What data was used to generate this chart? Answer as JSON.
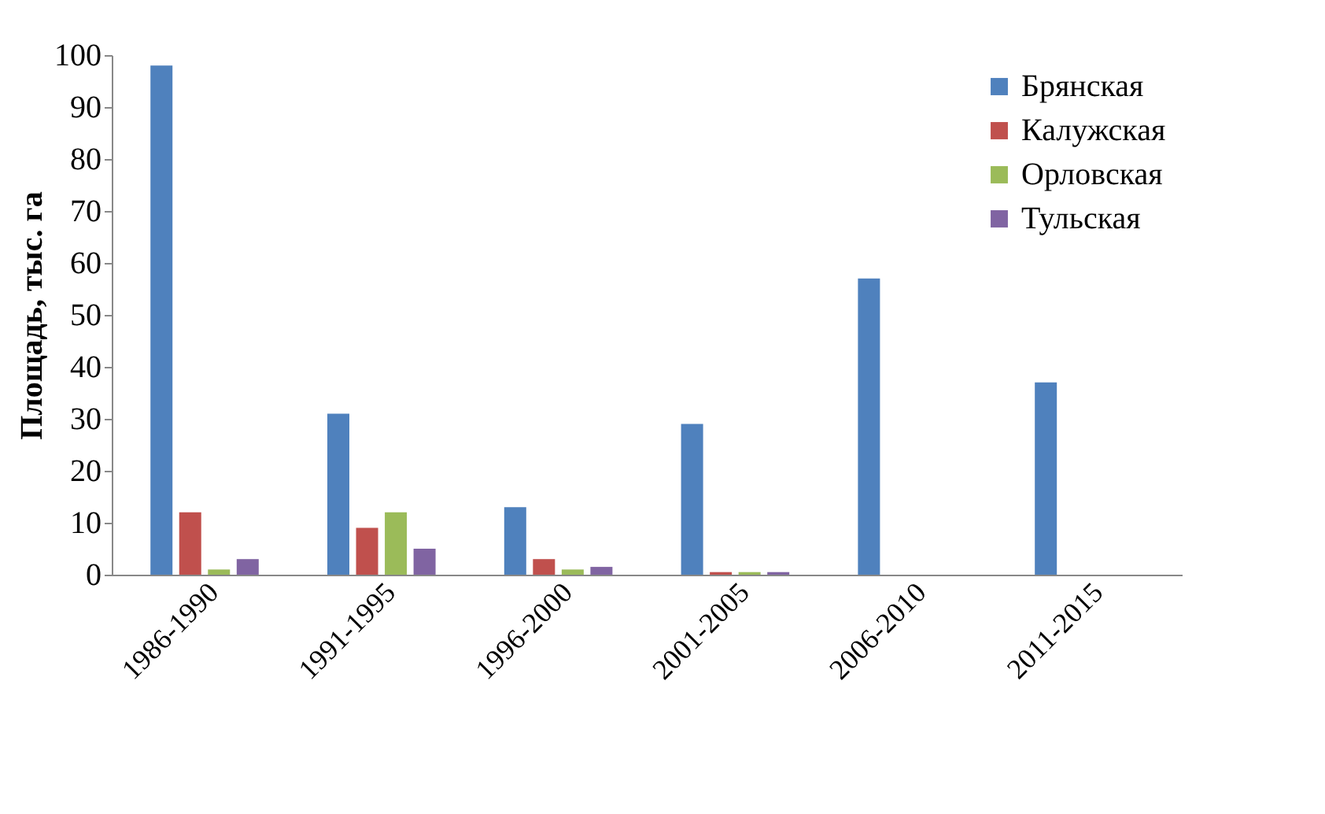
{
  "chart_data": {
    "type": "bar",
    "ylabel": "Площадь, тыс. га",
    "categories": [
      "1986-1990",
      "1991-1995",
      "1996-2000",
      "2001-2005",
      "2006-2010",
      "2011-2015"
    ],
    "series": [
      {
        "name": "Брянская",
        "color": "#4f81bd",
        "values": [
          98,
          31,
          13,
          29,
          57,
          37
        ]
      },
      {
        "name": "Калужская",
        "color": "#c0504d",
        "values": [
          12,
          9,
          3,
          0.5,
          0,
          0
        ]
      },
      {
        "name": "Орловская",
        "color": "#9bbb59",
        "values": [
          1,
          12,
          1,
          0.5,
          0,
          0
        ]
      },
      {
        "name": "Тульская",
        "color": "#8064a2",
        "values": [
          3,
          5,
          1.5,
          0.5,
          0,
          0
        ]
      }
    ],
    "ylim": [
      0,
      100
    ],
    "yticks": [
      0,
      10,
      20,
      30,
      40,
      50,
      60,
      70,
      80,
      90,
      100
    ],
    "grid": false,
    "legend": "top right"
  }
}
